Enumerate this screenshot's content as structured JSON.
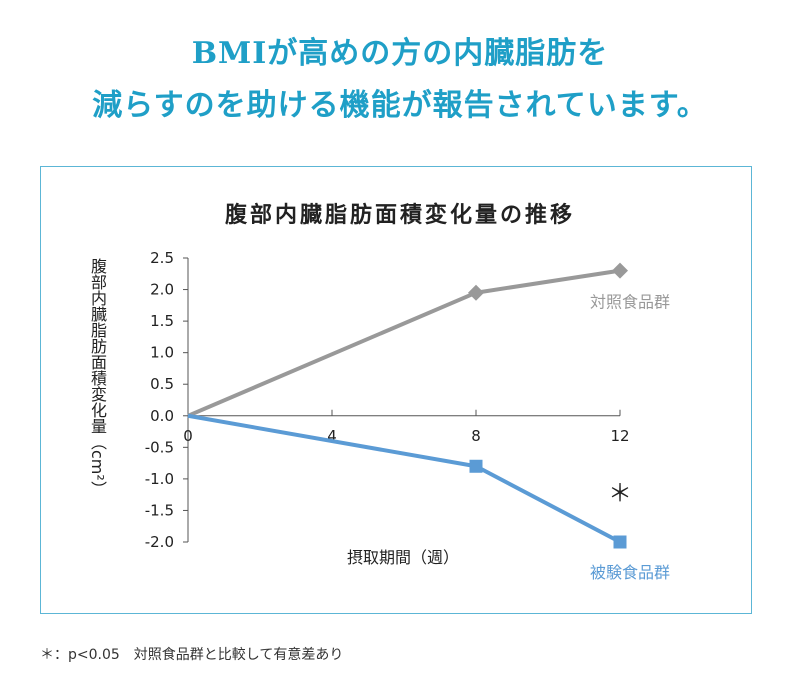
{
  "headline": {
    "line1": "BMIが高めの方の内臓脂肪を",
    "line2": "減らすのを助ける機能が報告されています。"
  },
  "chart_data": {
    "type": "line",
    "title": "腹部内臓脂肪面積変化量の推移",
    "ylabel": "腹部内臓脂肪面積変化量（cm²）",
    "xlabel": "摂取期間（週）",
    "x": [
      0,
      8,
      12
    ],
    "xticks": [
      0,
      4,
      8,
      12
    ],
    "xlim": [
      0,
      12
    ],
    "ylim": [
      -2.0,
      2.5
    ],
    "yticks": [
      2.5,
      2.0,
      1.5,
      1.0,
      0.5,
      0.0,
      -0.5,
      -1.0,
      -1.5,
      -2.0
    ],
    "ytick_labels": [
      "2.5",
      "2.0",
      "1.5",
      "1.0",
      "0.5",
      "0.0",
      "-0.5",
      "-1.0",
      "-1.5",
      "-2.0"
    ],
    "series": [
      {
        "name": "対照食品群",
        "values": [
          0,
          1.95,
          2.3
        ],
        "color": "#999999",
        "marker": "diamond"
      },
      {
        "name": "被験食品群",
        "values": [
          0,
          -0.8,
          -2.0
        ],
        "color": "#5b9bd5",
        "marker": "square"
      }
    ],
    "annotations": [
      {
        "text": "＊",
        "x": 12,
        "y": -1.35
      }
    ]
  },
  "footnote": "＊：p<0.05　対照食品群と比較して有意差あり"
}
